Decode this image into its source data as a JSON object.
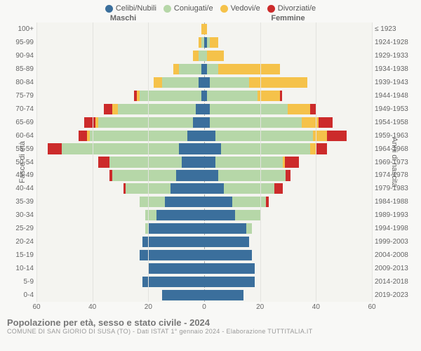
{
  "legend": [
    {
      "label": "Celibi/Nubili",
      "color": "#3b6f9c"
    },
    {
      "label": "Coniugati/e",
      "color": "#b6d7a8"
    },
    {
      "label": "Vedovi/e",
      "color": "#f5c24a"
    },
    {
      "label": "Divorziati/e",
      "color": "#cc2b2b"
    }
  ],
  "header_male": "Maschi",
  "header_female": "Femmine",
  "ylabel_left": "Fasce di età",
  "ylabel_right": "Anni di nascita",
  "x_ticks": [
    60,
    40,
    20,
    0,
    20,
    40,
    60
  ],
  "x_max": 60,
  "background_color": "#f8f8f6",
  "plot_bg": "#f4f4f0",
  "grid_color": "#e3e3df",
  "title": "Popolazione per età, sesso e stato civile - 2024",
  "subtitle": "COMUNE DI SAN GIORIO DI SUSA (TO) - Dati ISTAT 1° gennaio 2024 - Elaborazione TUTTITALIA.IT",
  "age_labels": [
    "100+",
    "95-99",
    "90-94",
    "85-89",
    "80-84",
    "75-79",
    "70-74",
    "65-69",
    "60-64",
    "55-59",
    "50-54",
    "45-49",
    "40-44",
    "35-39",
    "30-34",
    "25-29",
    "20-24",
    "15-19",
    "10-14",
    "5-9",
    "0-4"
  ],
  "birth_labels": [
    "≤ 1923",
    "1924-1928",
    "1929-1933",
    "1934-1938",
    "1939-1943",
    "1944-1948",
    "1949-1953",
    "1954-1958",
    "1959-1963",
    "1964-1968",
    "1969-1973",
    "1974-1978",
    "1979-1983",
    "1984-1988",
    "1989-1993",
    "1994-1998",
    "1999-2003",
    "2004-2008",
    "2009-2013",
    "2014-2018",
    "2019-2023"
  ],
  "rows": [
    {
      "m": {
        "c": 0,
        "s": 0,
        "v": 1,
        "d": 0
      },
      "f": {
        "c": 0,
        "s": 0,
        "v": 1,
        "d": 0
      }
    },
    {
      "m": {
        "c": 0,
        "s": 1,
        "v": 1,
        "d": 0
      },
      "f": {
        "c": 1,
        "s": 1,
        "v": 3,
        "d": 0
      }
    },
    {
      "m": {
        "c": 0,
        "s": 2,
        "v": 2,
        "d": 0
      },
      "f": {
        "c": 0,
        "s": 1,
        "v": 6,
        "d": 0
      }
    },
    {
      "m": {
        "c": 1,
        "s": 8,
        "v": 2,
        "d": 0
      },
      "f": {
        "c": 1,
        "s": 4,
        "v": 22,
        "d": 0
      }
    },
    {
      "m": {
        "c": 2,
        "s": 13,
        "v": 3,
        "d": 0
      },
      "f": {
        "c": 2,
        "s": 14,
        "v": 21,
        "d": 0
      }
    },
    {
      "m": {
        "c": 1,
        "s": 22,
        "v": 1,
        "d": 1
      },
      "f": {
        "c": 1,
        "s": 18,
        "v": 8,
        "d": 1
      }
    },
    {
      "m": {
        "c": 3,
        "s": 28,
        "v": 2,
        "d": 3
      },
      "f": {
        "c": 2,
        "s": 28,
        "v": 8,
        "d": 2
      }
    },
    {
      "m": {
        "c": 4,
        "s": 34,
        "v": 1,
        "d": 4
      },
      "f": {
        "c": 2,
        "s": 33,
        "v": 6,
        "d": 5
      }
    },
    {
      "m": {
        "c": 6,
        "s": 35,
        "v": 1,
        "d": 3
      },
      "f": {
        "c": 4,
        "s": 35,
        "v": 5,
        "d": 7
      }
    },
    {
      "m": {
        "c": 9,
        "s": 42,
        "v": 0,
        "d": 5
      },
      "f": {
        "c": 6,
        "s": 32,
        "v": 2,
        "d": 4
      }
    },
    {
      "m": {
        "c": 8,
        "s": 26,
        "v": 0,
        "d": 4
      },
      "f": {
        "c": 4,
        "s": 24,
        "v": 1,
        "d": 5
      }
    },
    {
      "m": {
        "c": 10,
        "s": 23,
        "v": 0,
        "d": 1
      },
      "f": {
        "c": 5,
        "s": 24,
        "v": 0,
        "d": 2
      }
    },
    {
      "m": {
        "c": 12,
        "s": 16,
        "v": 0,
        "d": 1
      },
      "f": {
        "c": 7,
        "s": 18,
        "v": 0,
        "d": 3
      }
    },
    {
      "m": {
        "c": 14,
        "s": 9,
        "v": 0,
        "d": 0
      },
      "f": {
        "c": 10,
        "s": 12,
        "v": 0,
        "d": 1
      }
    },
    {
      "m": {
        "c": 17,
        "s": 4,
        "v": 0,
        "d": 0
      },
      "f": {
        "c": 11,
        "s": 9,
        "v": 0,
        "d": 0
      }
    },
    {
      "m": {
        "c": 20,
        "s": 1,
        "v": 0,
        "d": 0
      },
      "f": {
        "c": 15,
        "s": 2,
        "v": 0,
        "d": 0
      }
    },
    {
      "m": {
        "c": 22,
        "s": 0,
        "v": 0,
        "d": 0
      },
      "f": {
        "c": 16,
        "s": 0,
        "v": 0,
        "d": 0
      }
    },
    {
      "m": {
        "c": 23,
        "s": 0,
        "v": 0,
        "d": 0
      },
      "f": {
        "c": 17,
        "s": 0,
        "v": 0,
        "d": 0
      }
    },
    {
      "m": {
        "c": 20,
        "s": 0,
        "v": 0,
        "d": 0
      },
      "f": {
        "c": 18,
        "s": 0,
        "v": 0,
        "d": 0
      }
    },
    {
      "m": {
        "c": 22,
        "s": 0,
        "v": 0,
        "d": 0
      },
      "f": {
        "c": 18,
        "s": 0,
        "v": 0,
        "d": 0
      }
    },
    {
      "m": {
        "c": 15,
        "s": 0,
        "v": 0,
        "d": 0
      },
      "f": {
        "c": 14,
        "s": 0,
        "v": 0,
        "d": 0
      }
    }
  ]
}
